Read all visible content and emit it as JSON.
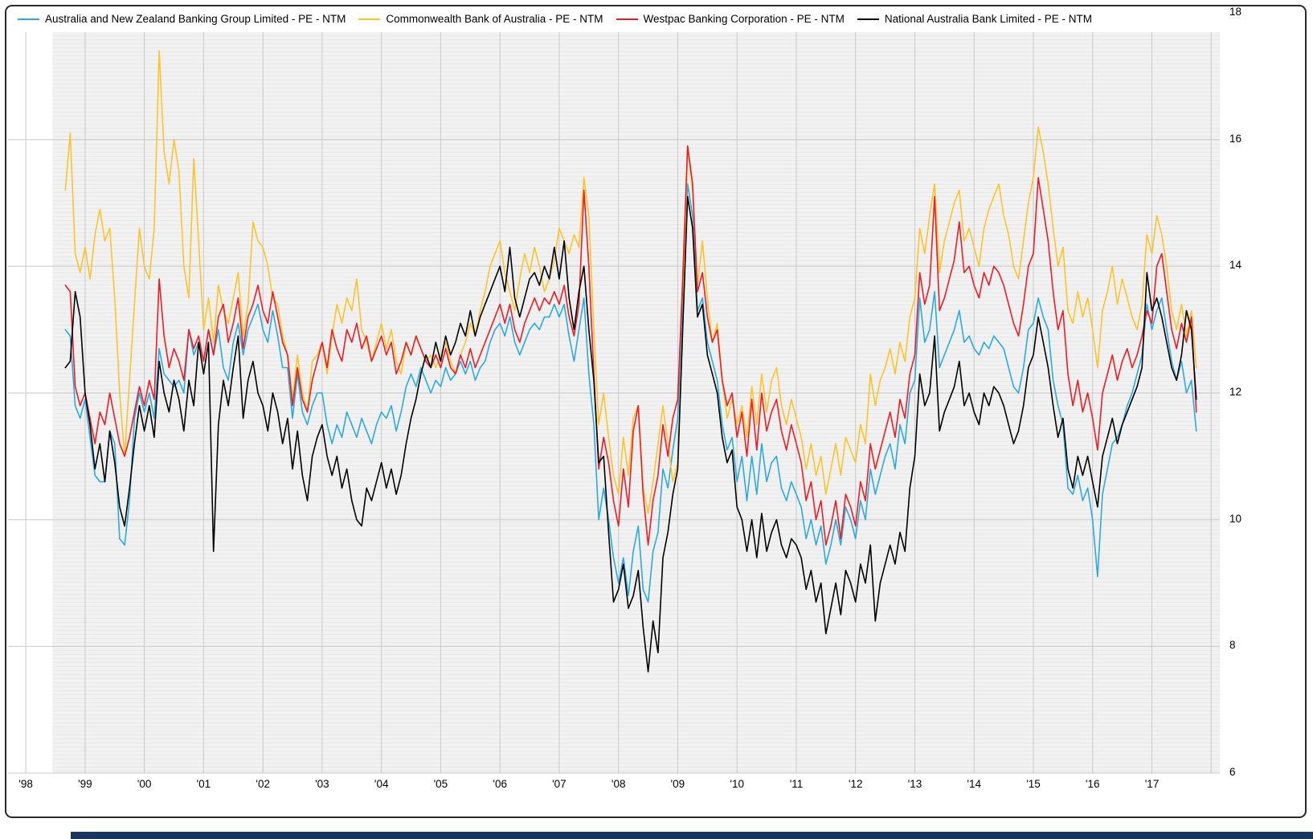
{
  "colors": {
    "grid": "#c9c9c9",
    "pane_background": "#f1f1f1",
    "pane_stripe": "#e9e9e9",
    "bottom_bar": "#16355f"
  },
  "chart_data": {
    "type": "line",
    "title": "",
    "xlabel": "",
    "ylabel": "",
    "grid": true,
    "legend_position": "top",
    "xlim": [
      1997.7,
      2018.2
    ],
    "ylim": [
      6,
      18
    ],
    "y_ticks": [
      6,
      8,
      10,
      12,
      14,
      16,
      18
    ],
    "x_axis": {
      "interval": "monthly",
      "start_year": 1998,
      "start_month": 9,
      "tick_years": [
        1998,
        1999,
        2000,
        2001,
        2002,
        2003,
        2004,
        2005,
        2006,
        2007,
        2008,
        2009,
        2010,
        2011,
        2012,
        2013,
        2014,
        2015,
        2016,
        2017
      ],
      "tick_labels": [
        "'98",
        "'99",
        "'00",
        "'01",
        "'02",
        "'03",
        "'04",
        "'05",
        "'06",
        "'07",
        "'08",
        "'09",
        "'10",
        "'11",
        "'12",
        "'13",
        "'14",
        "'15",
        "'16",
        "'17"
      ]
    },
    "series": [
      {
        "name": "Australia and New Zealand Banking Group Limited - PE - NTM",
        "color": "#2da9e1",
        "values": [
          13.0,
          12.9,
          11.8,
          11.6,
          11.9,
          11.3,
          10.7,
          10.6,
          10.6,
          11.4,
          11.2,
          9.7,
          9.6,
          10.3,
          11.6,
          12.0,
          11.7,
          12.0,
          11.6,
          12.7,
          12.3,
          12.2,
          12.1,
          12.2,
          12.0,
          13.0,
          12.6,
          12.8,
          12.5,
          13.0,
          12.6,
          13.0,
          12.4,
          12.2,
          12.8,
          13.1,
          12.6,
          13.0,
          13.2,
          13.4,
          13.0,
          12.8,
          13.3,
          12.9,
          12.4,
          12.4,
          11.6,
          12.3,
          11.7,
          11.5,
          11.8,
          12.0,
          12.0,
          11.5,
          11.2,
          11.5,
          11.3,
          11.7,
          11.5,
          11.3,
          11.6,
          11.4,
          11.2,
          11.5,
          11.7,
          11.6,
          11.8,
          11.4,
          11.7,
          12.1,
          12.3,
          12.1,
          12.4,
          12.2,
          12.0,
          12.2,
          12.1,
          12.4,
          12.2,
          12.3,
          12.5,
          12.3,
          12.5,
          12.2,
          12.4,
          12.5,
          12.8,
          13.0,
          13.1,
          12.9,
          13.2,
          12.8,
          12.6,
          12.8,
          13.0,
          13.1,
          13.0,
          13.2,
          13.2,
          13.4,
          13.2,
          13.4,
          12.9,
          12.5,
          13.0,
          13.5,
          12.3,
          11.5,
          10.0,
          10.5,
          10.0,
          9.4,
          9.0,
          9.4,
          8.8,
          9.5,
          9.9,
          8.9,
          8.7,
          9.5,
          9.8,
          10.8,
          10.5,
          11.1,
          11.6,
          13.5,
          15.3,
          14.8,
          13.3,
          13.5,
          12.8,
          12.5,
          12.2,
          11.5,
          11.1,
          11.3,
          10.6,
          11.0,
          10.3,
          11.0,
          10.4,
          11.2,
          10.6,
          10.9,
          11.0,
          10.5,
          10.3,
          10.6,
          10.4,
          10.2,
          9.7,
          10.0,
          9.6,
          9.9,
          9.3,
          9.6,
          10.0,
          9.6,
          10.2,
          10.0,
          9.7,
          10.3,
          10.0,
          10.8,
          10.4,
          10.7,
          11.0,
          11.2,
          10.8,
          11.5,
          11.2,
          12.0,
          12.2,
          13.5,
          12.8,
          13.0,
          13.6,
          12.4,
          12.6,
          12.8,
          13.0,
          13.3,
          12.8,
          12.9,
          12.7,
          12.6,
          12.8,
          12.7,
          12.9,
          12.8,
          12.7,
          12.4,
          12.1,
          12.0,
          12.4,
          13.0,
          13.1,
          13.5,
          13.2,
          13.0,
          12.2,
          11.8,
          11.5,
          10.5,
          10.4,
          10.7,
          10.3,
          10.5,
          10.0,
          9.1,
          10.4,
          10.8,
          11.2,
          11.3,
          11.5,
          11.8,
          12.0,
          12.3,
          12.6,
          13.4,
          13.0,
          13.3,
          13.5,
          13.0,
          12.5,
          12.2,
          12.5,
          12.0,
          12.2,
          11.4
        ]
      },
      {
        "name": "Commonwealth Bank of Australia - PE - NTM",
        "color": "#fdc32b",
        "values": [
          15.2,
          16.1,
          14.2,
          13.9,
          14.3,
          13.8,
          14.5,
          14.9,
          14.4,
          14.6,
          13.5,
          12.0,
          11.0,
          12.2,
          13.4,
          14.6,
          14.0,
          13.8,
          14.6,
          17.4,
          15.8,
          15.3,
          16.0,
          15.5,
          14.0,
          13.5,
          15.7,
          14.4,
          13.0,
          13.5,
          12.8,
          13.7,
          13.3,
          13.1,
          13.5,
          13.9,
          12.9,
          13.4,
          14.7,
          14.4,
          14.3,
          14.0,
          13.5,
          13.4,
          12.9,
          12.6,
          11.9,
          12.6,
          12.0,
          11.7,
          12.5,
          12.6,
          12.8,
          12.3,
          12.9,
          13.4,
          13.1,
          13.5,
          13.3,
          13.8,
          13.0,
          12.8,
          12.5,
          12.8,
          13.1,
          12.7,
          13.0,
          12.5,
          12.3,
          12.8,
          12.6,
          12.9,
          12.7,
          12.5,
          12.6,
          12.4,
          12.6,
          12.8,
          12.5,
          12.3,
          12.6,
          12.8,
          13.1,
          12.9,
          13.3,
          13.6,
          14.0,
          14.2,
          14.4,
          13.9,
          13.6,
          13.3,
          13.8,
          14.2,
          13.9,
          14.3,
          14.0,
          13.6,
          13.8,
          14.1,
          14.6,
          14.4,
          14.2,
          14.5,
          14.3,
          15.4,
          14.8,
          13.0,
          11.5,
          12.0,
          11.3,
          10.7,
          10.4,
          11.3,
          10.7,
          11.6,
          11.8,
          10.5,
          10.1,
          10.6,
          11.2,
          11.8,
          11.2,
          10.6,
          10.9,
          13.0,
          15.9,
          15.2,
          13.7,
          14.4,
          13.5,
          12.8,
          13.1,
          12.2,
          11.6,
          11.9,
          11.5,
          11.8,
          11.3,
          12.1,
          11.5,
          12.3,
          11.7,
          12.2,
          12.4,
          11.8,
          11.5,
          11.9,
          11.6,
          11.3,
          10.8,
          11.2,
          10.7,
          11.0,
          10.4,
          10.8,
          11.2,
          10.7,
          11.3,
          11.1,
          10.9,
          11.5,
          11.2,
          12.3,
          11.8,
          12.2,
          12.4,
          12.7,
          12.3,
          12.8,
          12.5,
          13.2,
          13.5,
          14.6,
          14.2,
          14.8,
          15.3,
          13.9,
          14.4,
          14.7,
          15.0,
          15.2,
          14.4,
          14.6,
          14.3,
          14.0,
          14.6,
          14.9,
          15.1,
          15.3,
          14.8,
          14.5,
          14.0,
          13.8,
          14.4,
          15.0,
          15.4,
          16.2,
          15.8,
          15.3,
          14.6,
          14.0,
          14.3,
          13.3,
          13.1,
          13.6,
          13.2,
          13.5,
          13.0,
          12.4,
          13.3,
          13.6,
          14.0,
          13.4,
          13.8,
          13.5,
          13.2,
          13.0,
          13.4,
          14.5,
          14.2,
          14.8,
          14.5,
          14.0,
          13.3,
          13.0,
          13.4,
          12.9,
          13.3,
          12.4
        ]
      },
      {
        "name": "Westpac Banking Corporation - PE - NTM",
        "color": "#ee1c25",
        "values": [
          13.7,
          13.6,
          12.1,
          11.8,
          12.0,
          11.6,
          11.2,
          11.7,
          11.5,
          12.0,
          11.6,
          11.2,
          11.0,
          11.3,
          11.7,
          12.1,
          11.8,
          12.2,
          11.9,
          13.8,
          12.9,
          12.4,
          12.7,
          12.5,
          12.2,
          13.0,
          12.7,
          12.9,
          12.5,
          13.0,
          12.6,
          13.2,
          13.4,
          12.8,
          13.1,
          13.5,
          12.7,
          13.2,
          13.4,
          13.7,
          13.3,
          13.1,
          13.6,
          13.2,
          12.8,
          12.6,
          11.8,
          12.4,
          11.9,
          11.7,
          12.2,
          12.5,
          12.8,
          12.4,
          13.0,
          12.7,
          12.5,
          13.0,
          12.8,
          13.1,
          12.7,
          12.9,
          12.5,
          12.7,
          12.9,
          12.6,
          12.8,
          12.3,
          12.5,
          12.8,
          12.6,
          12.9,
          12.7,
          12.5,
          12.4,
          12.6,
          12.4,
          12.7,
          12.4,
          12.3,
          12.6,
          12.4,
          12.7,
          12.4,
          12.6,
          12.8,
          13.0,
          13.2,
          13.4,
          13.1,
          13.4,
          13.0,
          12.8,
          13.1,
          13.3,
          13.5,
          13.3,
          13.5,
          13.4,
          13.6,
          13.4,
          13.7,
          13.2,
          12.9,
          13.4,
          15.2,
          14.0,
          12.3,
          10.8,
          11.3,
          10.9,
          10.3,
          9.9,
          10.8,
          10.2,
          11.4,
          11.8,
          10.4,
          9.6,
          10.3,
          10.7,
          11.5,
          11.0,
          11.6,
          11.9,
          13.8,
          15.9,
          15.3,
          13.6,
          13.9,
          13.2,
          12.8,
          13.0,
          12.2,
          11.8,
          12.0,
          11.3,
          11.7,
          11.0,
          11.9,
          11.1,
          12.0,
          11.4,
          11.7,
          11.9,
          11.4,
          11.1,
          11.5,
          11.2,
          10.9,
          10.3,
          10.6,
          10.0,
          10.3,
          9.6,
          9.9,
          10.3,
          9.7,
          10.4,
          10.2,
          9.9,
          10.6,
          10.3,
          11.2,
          10.8,
          11.1,
          11.4,
          11.7,
          11.3,
          11.9,
          11.6,
          12.3,
          12.6,
          13.9,
          13.4,
          13.7,
          15.1,
          13.3,
          13.5,
          13.8,
          14.1,
          14.7,
          13.9,
          14.0,
          13.7,
          13.5,
          13.9,
          13.7,
          14.0,
          13.9,
          13.7,
          13.4,
          13.1,
          12.9,
          13.4,
          14.0,
          14.2,
          15.4,
          14.9,
          14.4,
          13.6,
          13.0,
          13.3,
          12.3,
          11.8,
          12.2,
          11.7,
          12.0,
          11.6,
          11.1,
          12.0,
          12.3,
          12.6,
          12.2,
          12.5,
          12.7,
          12.4,
          12.6,
          12.9,
          13.3,
          13.1,
          14.0,
          14.2,
          13.6,
          13.0,
          12.7,
          13.1,
          12.8,
          13.2,
          11.7
        ]
      },
      {
        "name": "National Australia Bank Limited - PE - NTM",
        "color": "#000000",
        "values": [
          12.4,
          12.5,
          13.6,
          13.2,
          12.0,
          11.5,
          10.8,
          11.2,
          10.6,
          11.4,
          10.9,
          10.2,
          9.9,
          10.5,
          11.2,
          11.8,
          11.4,
          11.8,
          11.3,
          12.5,
          12.0,
          11.7,
          12.2,
          11.9,
          11.4,
          12.2,
          11.8,
          12.8,
          12.3,
          12.8,
          9.5,
          11.5,
          12.2,
          11.8,
          12.4,
          12.9,
          11.6,
          12.2,
          12.5,
          12.0,
          11.8,
          11.4,
          12.0,
          11.7,
          11.2,
          11.6,
          10.8,
          11.4,
          10.7,
          10.3,
          11.0,
          11.3,
          11.5,
          11.0,
          10.7,
          11.0,
          10.5,
          10.8,
          10.3,
          10.0,
          9.9,
          10.5,
          10.3,
          10.6,
          10.9,
          10.5,
          10.8,
          10.4,
          10.7,
          11.2,
          11.6,
          11.9,
          12.3,
          12.6,
          12.4,
          12.8,
          12.5,
          12.9,
          12.6,
          12.8,
          13.1,
          12.9,
          13.3,
          12.9,
          13.2,
          13.4,
          13.6,
          13.8,
          14.0,
          13.6,
          14.3,
          13.5,
          13.2,
          13.5,
          13.8,
          13.9,
          13.7,
          14.0,
          13.8,
          14.3,
          13.8,
          14.4,
          13.5,
          13.0,
          13.6,
          14.0,
          13.0,
          12.2,
          10.9,
          11.0,
          9.8,
          8.7,
          8.9,
          9.3,
          8.6,
          8.8,
          9.2,
          8.3,
          7.6,
          8.4,
          7.9,
          9.4,
          9.8,
          10.4,
          10.8,
          13.0,
          15.1,
          14.6,
          13.2,
          13.4,
          12.6,
          12.3,
          12.0,
          11.3,
          10.9,
          11.1,
          10.2,
          10.0,
          9.5,
          10.0,
          9.4,
          10.1,
          9.5,
          9.8,
          10.0,
          9.6,
          9.4,
          9.7,
          9.6,
          9.4,
          8.9,
          9.2,
          8.7,
          9.0,
          8.2,
          8.6,
          9.0,
          8.5,
          9.2,
          9.0,
          8.7,
          9.3,
          9.0,
          9.6,
          8.4,
          9.0,
          9.3,
          9.6,
          9.3,
          9.8,
          9.5,
          10.5,
          11.0,
          12.3,
          11.8,
          12.0,
          12.9,
          11.4,
          11.7,
          11.9,
          12.1,
          12.5,
          11.8,
          12.0,
          11.7,
          11.5,
          12.0,
          11.8,
          12.1,
          12.0,
          11.8,
          11.5,
          11.2,
          11.4,
          11.8,
          12.4,
          12.6,
          13.2,
          12.8,
          12.4,
          11.8,
          11.3,
          11.6,
          10.8,
          10.5,
          11.0,
          10.7,
          11.0,
          10.6,
          10.2,
          11.0,
          11.3,
          11.6,
          11.2,
          11.5,
          11.7,
          11.9,
          12.1,
          12.4,
          13.9,
          13.3,
          13.5,
          13.2,
          12.8,
          12.4,
          12.2,
          12.6,
          13.3,
          13.0,
          11.9
        ]
      }
    ]
  }
}
